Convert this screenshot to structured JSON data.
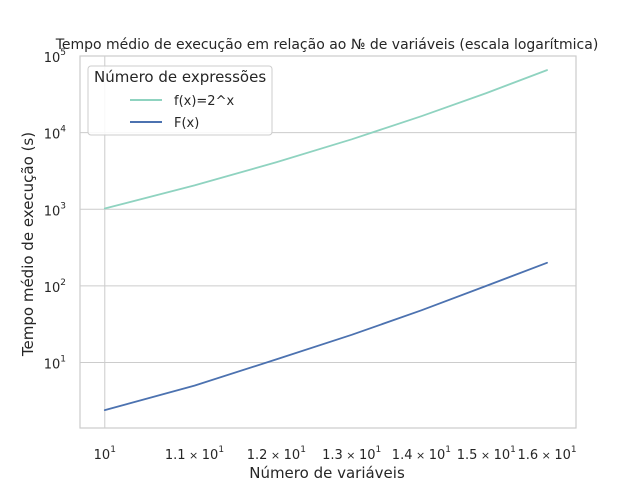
{
  "chart_data": {
    "type": "line",
    "title": "Tempo médio de execução em relação ao № de variáveis (escala logarítmica)",
    "xlabel": "Número de variáveis",
    "ylabel": "Tempo médio de execução (s)",
    "xscale": "log",
    "yscale": "log",
    "xlim": [
      9.74,
      16.5
    ],
    "ylim": [
      1.4,
      100000
    ],
    "grid": true,
    "legend": {
      "title": "Número de expressões",
      "placement": "top-left"
    },
    "x_ticks": [
      {
        "value": 10,
        "mantissa": "",
        "base": "10",
        "exp": "1"
      },
      {
        "value": 11,
        "mantissa": "1.1",
        "base": "10",
        "exp": "1"
      },
      {
        "value": 12,
        "mantissa": "1.2",
        "base": "10",
        "exp": "1"
      },
      {
        "value": 13,
        "mantissa": "1.3",
        "base": "10",
        "exp": "1"
      },
      {
        "value": 14,
        "mantissa": "1.4",
        "base": "10",
        "exp": "1"
      },
      {
        "value": 15,
        "mantissa": "1.5",
        "base": "10",
        "exp": "1"
      },
      {
        "value": 16,
        "mantissa": "1.6",
        "base": "10",
        "exp": "1"
      }
    ],
    "y_ticks": [
      {
        "value": 10,
        "base": "10",
        "exp": "1"
      },
      {
        "value": 100,
        "base": "10",
        "exp": "2"
      },
      {
        "value": 1000,
        "base": "10",
        "exp": "3"
      },
      {
        "value": 10000,
        "base": "10",
        "exp": "4"
      },
      {
        "value": 100000,
        "base": "10",
        "exp": "5"
      }
    ],
    "x": [
      10,
      11,
      12,
      13,
      14,
      15,
      16
    ],
    "series": [
      {
        "name": "f(x)=2^x",
        "color": "#8fd3c0",
        "values": [
          1024,
          2048,
          4096,
          8192,
          16384,
          32768,
          65536
        ]
      },
      {
        "name": "F(x)",
        "color": "#4c72b0",
        "values": [
          2.4,
          5.0,
          11.0,
          23.0,
          48.0,
          100.0,
          200.0
        ]
      }
    ]
  }
}
